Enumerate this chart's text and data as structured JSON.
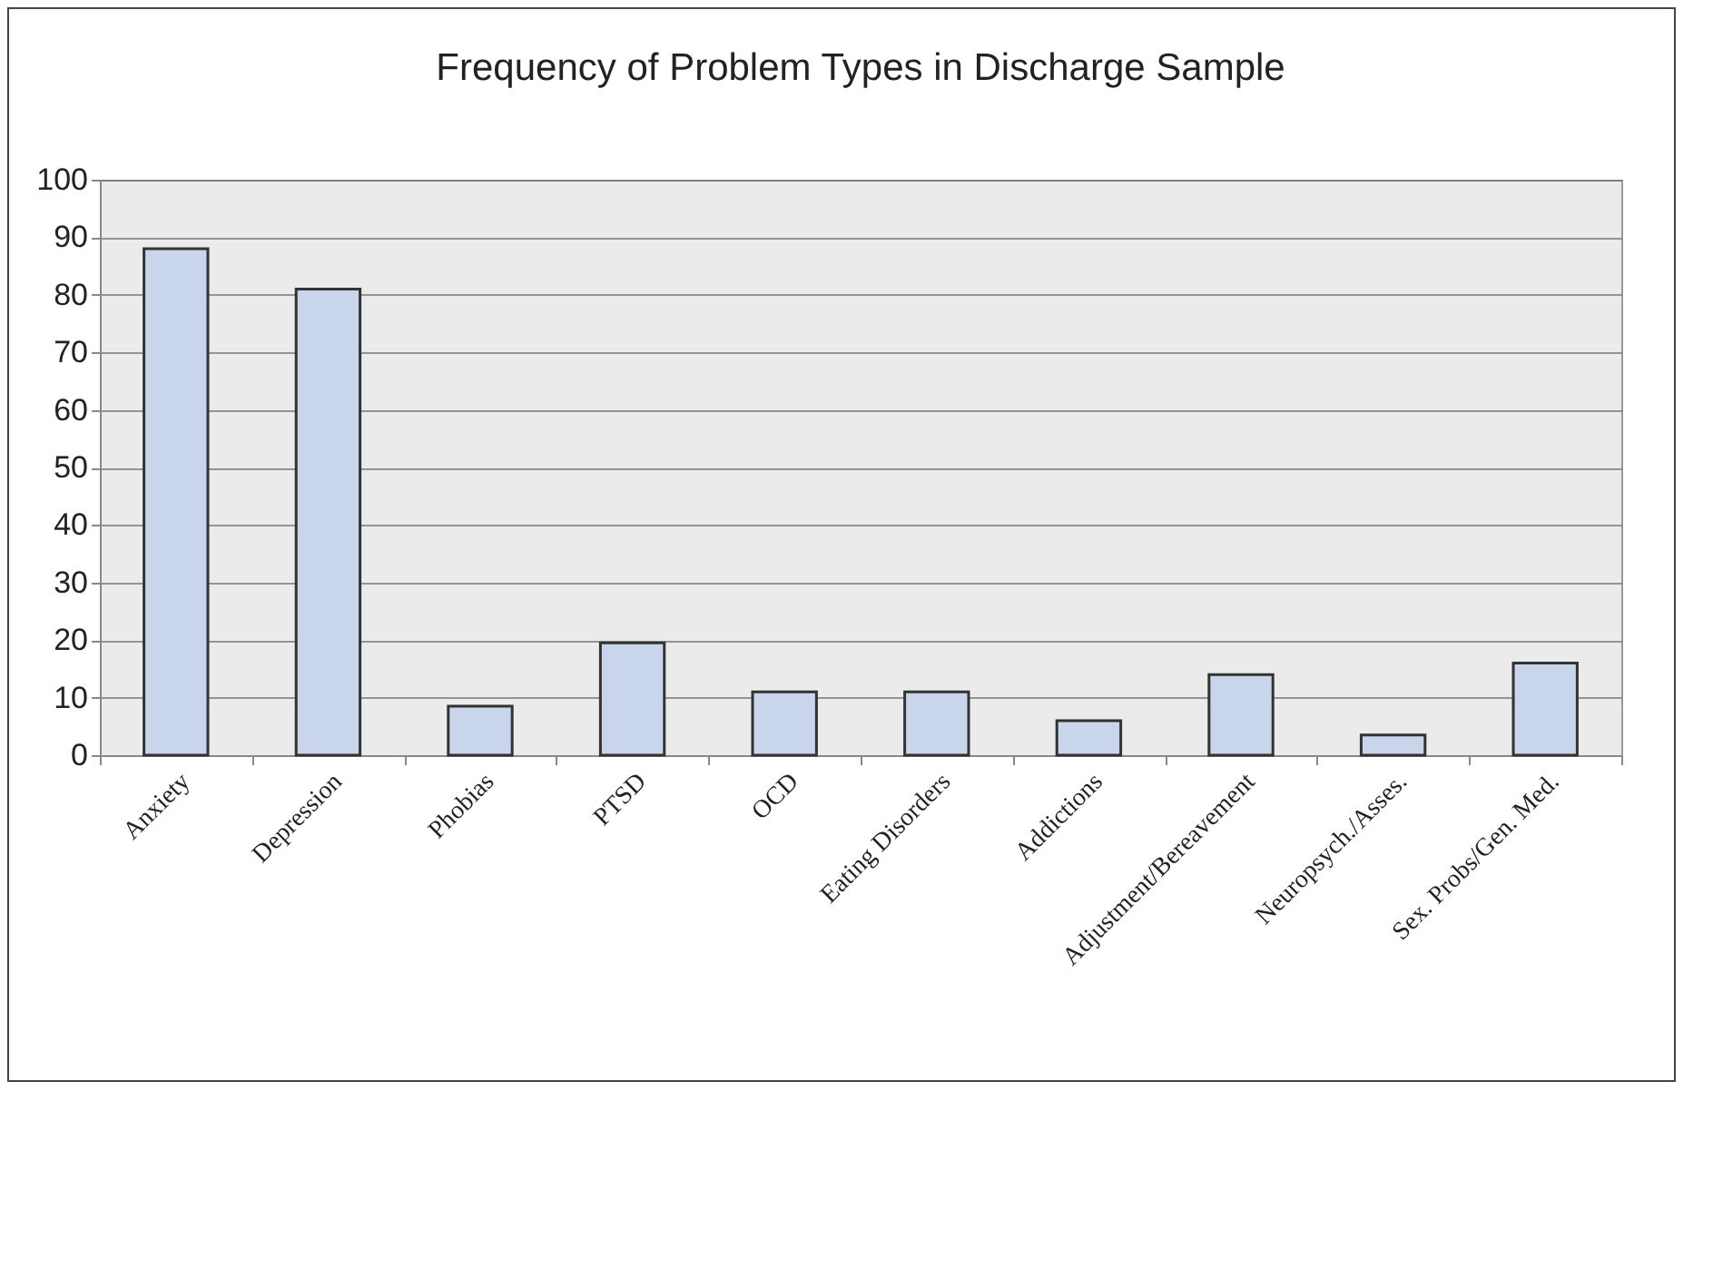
{
  "chart_data": {
    "type": "bar",
    "title": "Frequency of Problem Types in Discharge Sample",
    "categories": [
      "Anxiety",
      "Depression",
      "Phobias",
      "PTSD",
      "OCD",
      "Eating Disorders",
      "Addictions",
      "Adjustment/Bereavement",
      "Neuropsych./Asses.",
      "Sex. Probs/Gen. Med."
    ],
    "values": [
      88,
      81,
      8.5,
      19.5,
      11,
      11,
      6,
      14,
      3.5,
      16
    ],
    "color": "#c9d5ea",
    "ylim": [
      0,
      100
    ],
    "yticks": [
      0,
      10,
      20,
      30,
      40,
      50,
      60,
      70,
      80,
      90,
      100
    ],
    "grid": "y"
  }
}
